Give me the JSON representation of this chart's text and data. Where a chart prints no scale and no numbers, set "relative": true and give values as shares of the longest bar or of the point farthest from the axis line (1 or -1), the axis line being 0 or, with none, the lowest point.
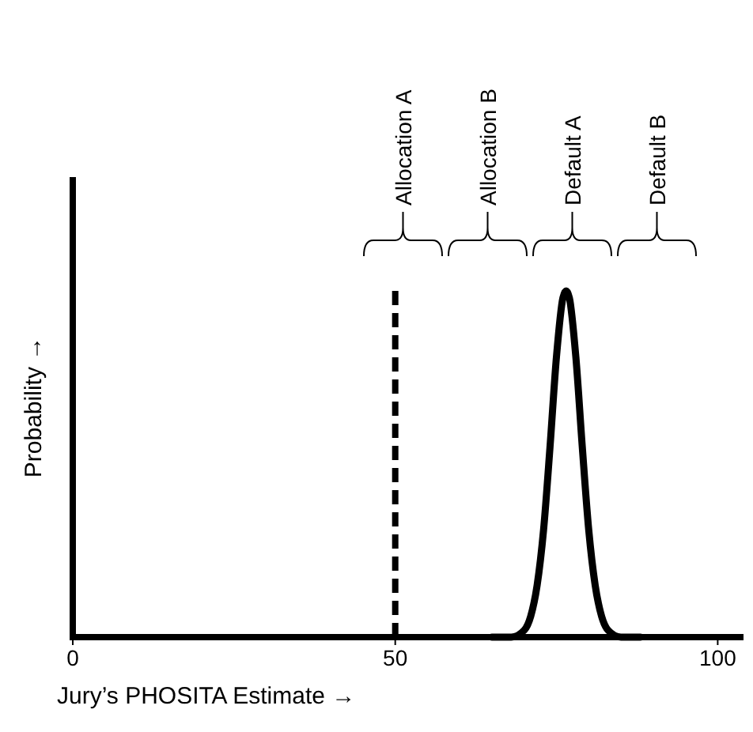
{
  "chart_data": {
    "type": "line",
    "relative": true,
    "xlabel": "Jury’s PHOSITA Estimate →",
    "ylabel": "Probability →",
    "xlim": [
      0,
      104
    ],
    "xticks": [
      0,
      50,
      100
    ],
    "tick_labels": "x",
    "grid": false,
    "marker": "none",
    "line_style": "solid",
    "series": [
      {
        "color": "#000000",
        "x": [
          65,
          68,
          70,
          71,
          72,
          73,
          74,
          75,
          76,
          76.5,
          77,
          78,
          79,
          80,
          81,
          82,
          83,
          85,
          88
        ],
        "values": [
          0,
          0,
          0.02,
          0.06,
          0.15,
          0.31,
          0.55,
          0.81,
          0.98,
          1,
          0.98,
          0.81,
          0.55,
          0.31,
          0.15,
          0.06,
          0.02,
          0,
          0
        ]
      }
    ],
    "ref_lines": [
      {
        "axis": "x",
        "value": 50,
        "color": "#000000",
        "line_style": "dashed"
      }
    ],
    "annotations": [
      "Allocation A",
      "Allocation B",
      "Default  A",
      "Default  B"
    ]
  }
}
